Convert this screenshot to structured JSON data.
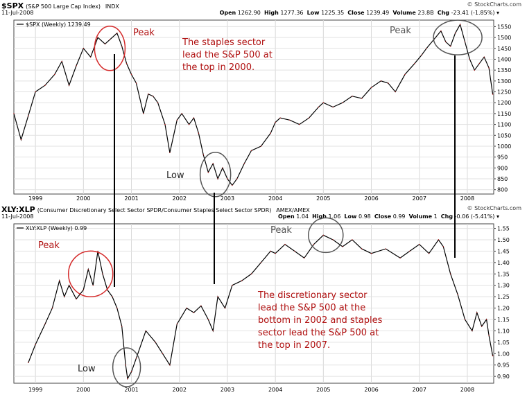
{
  "top_panel": {
    "symbol": "$SPX",
    "description": "(S&P 500 Large Cap Index)",
    "exchange": "INDX",
    "date": "11-Jul-2008",
    "source": "© StockCharts.com",
    "quote": {
      "open": "1262.90",
      "high": "1277.36",
      "low": "1225.35",
      "close": "1239.49",
      "volume": "23.8B",
      "chg": "-23.41 (-1.85%)"
    }
  },
  "bottom_panel": {
    "symbol": "XLY:XLP",
    "description": "(Consumer Discretionary Select Sector SPDR/Consumer Staples Select Sector SPDR)",
    "exchange": "AMEX/AMEX",
    "date": "11-Jul-2008",
    "source": "© StockCharts.com",
    "quote": {
      "open": "1.04",
      "high": "1.06",
      "low": "0.98",
      "close": "0.99",
      "volume": "1",
      "chg": "-0.06 (-5.41%)"
    }
  },
  "labels": {
    "open": "Open",
    "high": "High",
    "low": "Low",
    "close": "Close",
    "volume": "Volume",
    "chg": "Chg"
  },
  "annotation_colors": {
    "circle_red": "#d42a2a",
    "circle_gray": "#555555",
    "text_red": "#b01010",
    "line": "#cc2222"
  },
  "chart_data": [
    {
      "type": "line",
      "title": "$SPX",
      "legend": "$SPX (Weekly) 1239.49",
      "ylim": [
        780,
        1580
      ],
      "yticks": [
        800,
        850,
        900,
        950,
        1000,
        1050,
        1100,
        1150,
        1200,
        1250,
        1300,
        1350,
        1400,
        1450,
        1500,
        1550
      ],
      "xlim": [
        1998.55,
        2008.55
      ],
      "xtick_labels": [
        "1999",
        "2000",
        "2001",
        "2002",
        "2003",
        "2004",
        "2005",
        "2006",
        "2007",
        "2008"
      ],
      "x": [
        1998.55,
        1998.7,
        1998.85,
        1999.0,
        1999.2,
        1999.4,
        1999.55,
        1999.7,
        1999.85,
        2000.0,
        2000.15,
        2000.3,
        2000.45,
        2000.55,
        2000.7,
        2000.8,
        2000.9,
        2001.0,
        2001.1,
        2001.25,
        2001.35,
        2001.45,
        2001.55,
        2001.7,
        2001.8,
        2001.95,
        2002.05,
        2002.2,
        2002.3,
        2002.4,
        2002.5,
        2002.6,
        2002.7,
        2002.8,
        2002.9,
        2003.0,
        2003.1,
        2003.2,
        2003.35,
        2003.5,
        2003.7,
        2003.9,
        2004.0,
        2004.1,
        2004.3,
        2004.5,
        2004.7,
        2004.9,
        2005.0,
        2005.2,
        2005.4,
        2005.6,
        2005.8,
        2006.0,
        2006.2,
        2006.35,
        2006.5,
        2006.7,
        2006.9,
        2007.05,
        2007.15,
        2007.3,
        2007.45,
        2007.55,
        2007.65,
        2007.75,
        2007.85,
        2007.95,
        2008.05,
        2008.15,
        2008.25,
        2008.35,
        2008.45,
        2008.53
      ],
      "values": [
        1150,
        1030,
        1140,
        1250,
        1280,
        1330,
        1390,
        1280,
        1370,
        1450,
        1410,
        1500,
        1470,
        1490,
        1520,
        1460,
        1380,
        1330,
        1290,
        1150,
        1240,
        1230,
        1200,
        1100,
        970,
        1120,
        1150,
        1100,
        1130,
        1060,
        960,
        880,
        920,
        850,
        900,
        850,
        820,
        850,
        920,
        980,
        1000,
        1060,
        1110,
        1130,
        1120,
        1100,
        1130,
        1180,
        1200,
        1180,
        1200,
        1230,
        1220,
        1270,
        1300,
        1290,
        1250,
        1330,
        1380,
        1420,
        1450,
        1490,
        1530,
        1480,
        1460,
        1520,
        1560,
        1480,
        1400,
        1350,
        1380,
        1410,
        1360,
        1239
      ]
    },
    {
      "type": "line",
      "title": "XLY:XLP",
      "legend": "XLY:XLP (Weekly) 0.99",
      "ylim": [
        0.87,
        1.57
      ],
      "yticks": [
        0.9,
        0.95,
        1.0,
        1.05,
        1.1,
        1.15,
        1.2,
        1.25,
        1.3,
        1.35,
        1.4,
        1.45,
        1.5,
        1.55
      ],
      "xlim": [
        1998.55,
        2008.55
      ],
      "xtick_labels": [
        "1999",
        "2000",
        "2001",
        "2002",
        "2003",
        "2004",
        "2005",
        "2006",
        "2007",
        "2008"
      ],
      "x": [
        1998.85,
        1999.0,
        1999.2,
        1999.35,
        1999.5,
        1999.6,
        1999.7,
        1999.85,
        2000.0,
        2000.1,
        2000.2,
        2000.3,
        2000.4,
        2000.5,
        2000.6,
        2000.7,
        2000.8,
        2000.88,
        2000.92,
        2001.0,
        2001.1,
        2001.3,
        2001.5,
        2001.65,
        2001.8,
        2001.95,
        2002.15,
        2002.3,
        2002.45,
        2002.6,
        2002.7,
        2002.8,
        2002.95,
        2003.1,
        2003.3,
        2003.5,
        2003.7,
        2003.9,
        2004.0,
        2004.2,
        2004.4,
        2004.6,
        2004.8,
        2005.0,
        2005.2,
        2005.4,
        2005.6,
        2005.8,
        2006.0,
        2006.3,
        2006.6,
        2006.8,
        2007.0,
        2007.2,
        2007.4,
        2007.5,
        2007.65,
        2007.8,
        2007.95,
        2008.1,
        2008.2,
        2008.3,
        2008.4,
        2008.45,
        2008.53
      ],
      "values": [
        0.96,
        1.04,
        1.13,
        1.2,
        1.32,
        1.25,
        1.3,
        1.24,
        1.28,
        1.37,
        1.3,
        1.45,
        1.35,
        1.28,
        1.25,
        1.2,
        1.12,
        0.95,
        0.89,
        0.92,
        0.98,
        1.1,
        1.05,
        1.0,
        0.95,
        1.13,
        1.2,
        1.18,
        1.21,
        1.15,
        1.1,
        1.25,
        1.2,
        1.3,
        1.32,
        1.35,
        1.4,
        1.45,
        1.44,
        1.48,
        1.45,
        1.42,
        1.48,
        1.52,
        1.5,
        1.47,
        1.5,
        1.46,
        1.44,
        1.46,
        1.42,
        1.45,
        1.48,
        1.44,
        1.5,
        1.47,
        1.35,
        1.26,
        1.15,
        1.1,
        1.18,
        1.12,
        1.15,
        1.08,
        0.99
      ]
    }
  ],
  "annotations": {
    "top_peak_left": "Peak",
    "top_peak_right": "Peak",
    "top_low": "Low",
    "top_note": [
      "The staples sector",
      "lead the S&P 500 at",
      "the top in 2000."
    ],
    "bottom_peak_left": "Peak",
    "bottom_peak_right": "Peak",
    "bottom_low": "Low",
    "bottom_note": [
      "The discretionary sector",
      "lead the S&P 500 at the",
      "bottom in 2002 and staples",
      "sector lead the S&P 500 at",
      "the top in 2007."
    ]
  }
}
